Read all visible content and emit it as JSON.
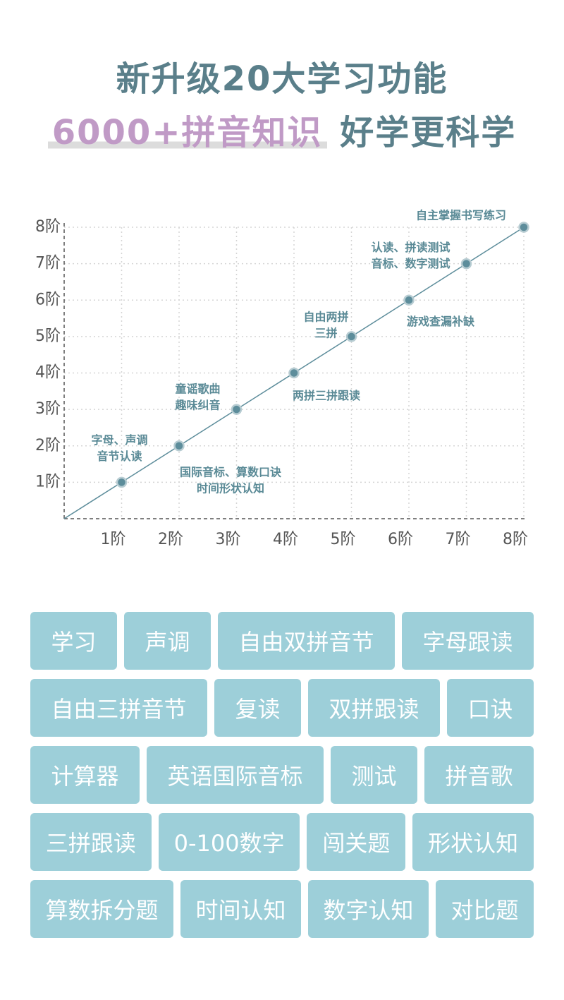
{
  "header": {
    "line1": "新升级20大学习功能",
    "highlight": "6000+拼音知识",
    "rest": "好学更科学"
  },
  "chart_data": {
    "type": "line",
    "x": [
      0,
      1,
      2,
      3,
      4,
      5,
      6,
      7,
      8
    ],
    "values": [
      0,
      1,
      2,
      3,
      4,
      5,
      6,
      7,
      8
    ],
    "color": "#5d8d9b",
    "xlim": [
      0,
      8
    ],
    "ylim": [
      0,
      8
    ],
    "xticks": [
      {
        "value": 1,
        "label": "1阶"
      },
      {
        "value": 2,
        "label": "2阶"
      },
      {
        "value": 3,
        "label": "3阶"
      },
      {
        "value": 4,
        "label": "4阶"
      },
      {
        "value": 5,
        "label": "5阶"
      },
      {
        "value": 6,
        "label": "6阶"
      },
      {
        "value": 7,
        "label": "7阶"
      },
      {
        "value": 8,
        "label": "8阶"
      }
    ],
    "yticks": [
      {
        "value": 1,
        "label": "1阶"
      },
      {
        "value": 2,
        "label": "2阶"
      },
      {
        "value": 3,
        "label": "3阶"
      },
      {
        "value": 4,
        "label": "4阶"
      },
      {
        "value": 5,
        "label": "5阶"
      },
      {
        "value": 6,
        "label": "6阶"
      },
      {
        "value": 7,
        "label": "7阶"
      },
      {
        "value": 8,
        "label": "8阶"
      }
    ],
    "grid": true,
    "annotations": [
      null,
      [
        "字母、声调",
        "音节认读"
      ],
      [
        "国际音标、算数口诀",
        "时间形状认知"
      ],
      [
        "童谣歌曲",
        "趣味纠音"
      ],
      [
        "两拼三拼跟读"
      ],
      [
        "自由两拼",
        "三拼"
      ],
      [
        "游戏查漏补缺"
      ],
      [
        "认读、拼读测试",
        "音标、数字测试"
      ],
      [
        "自主掌握书写练习"
      ]
    ]
  },
  "tags": {
    "rows": [
      [
        "学习",
        "声调",
        "自由双拼音节",
        "字母跟读"
      ],
      [
        "自由三拼音节",
        "复读",
        "双拼跟读",
        "口诀"
      ],
      [
        "计算器",
        "英语国际音标",
        "测试",
        "拼音歌"
      ],
      [
        "三拼跟读",
        "0-100数字",
        "闯关题",
        "形状认知"
      ],
      [
        "算数拆分题",
        "时间认知",
        "数字认知",
        "对比题"
      ]
    ]
  }
}
